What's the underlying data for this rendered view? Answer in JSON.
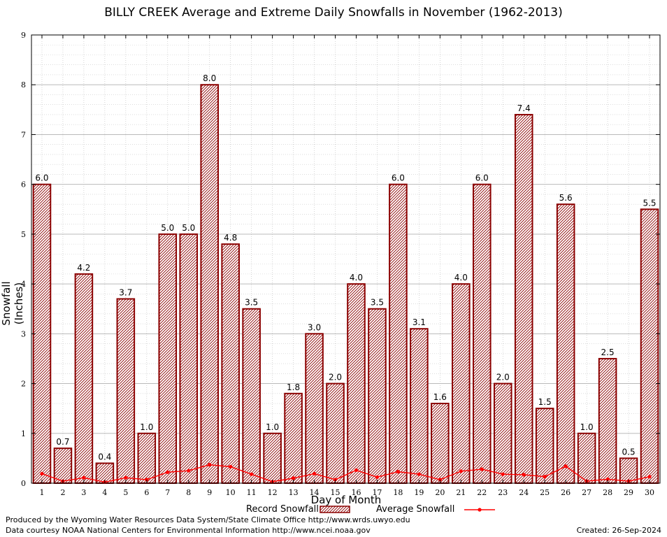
{
  "chart_data": {
    "type": "bar",
    "title": "BILLY CREEK Average and Extreme Daily Snowfalls in November (1962-2013)",
    "xlabel": "Day of Month",
    "ylabel": "Snowfall (Inches)",
    "ylim": [
      0,
      9
    ],
    "yticks": [
      0,
      1,
      2,
      3,
      4,
      5,
      6,
      7,
      8,
      9
    ],
    "categories": [
      "1",
      "2",
      "3",
      "4",
      "5",
      "6",
      "7",
      "8",
      "9",
      "10",
      "11",
      "12",
      "13",
      "14",
      "15",
      "16",
      "17",
      "18",
      "19",
      "20",
      "21",
      "22",
      "23",
      "24",
      "25",
      "26",
      "27",
      "28",
      "29",
      "30"
    ],
    "series": [
      {
        "name": "Record Snowfall",
        "type": "bar",
        "color": "#8b0000",
        "values": [
          6.0,
          0.7,
          4.2,
          0.4,
          3.7,
          1.0,
          5.0,
          5.0,
          8.0,
          4.8,
          3.5,
          1.0,
          1.8,
          3.0,
          2.0,
          4.0,
          3.5,
          6.0,
          3.1,
          1.6,
          4.0,
          6.0,
          2.0,
          7.4,
          1.5,
          5.6,
          1.0,
          2.5,
          0.5,
          5.5
        ],
        "labels": [
          "6.0",
          "0.7",
          "4.2",
          "0.4",
          "3.7",
          "1.0",
          "5.0",
          "5.0",
          "8.0",
          "4.8",
          "3.5",
          "1.0",
          "1.8",
          "3.0",
          "2.0",
          "4.0",
          "3.5",
          "6.0",
          "3.1",
          "1.6",
          "4.0",
          "6.0",
          "2.0",
          "7.4",
          "1.5",
          "5.6",
          "1.0",
          "2.5",
          "0.5",
          "5.5"
        ]
      },
      {
        "name": "Average Snowfall",
        "type": "line",
        "color": "#ff0000",
        "values": [
          0.19,
          0.04,
          0.11,
          0.02,
          0.11,
          0.07,
          0.22,
          0.25,
          0.37,
          0.33,
          0.18,
          0.03,
          0.1,
          0.19,
          0.07,
          0.26,
          0.12,
          0.23,
          0.18,
          0.07,
          0.24,
          0.28,
          0.18,
          0.17,
          0.13,
          0.34,
          0.04,
          0.08,
          0.04,
          0.13
        ]
      }
    ],
    "grid": true,
    "legend_position": "bottom-center"
  },
  "footer": {
    "produced_by": "Produced by the Wyoming Water Resources Data System/State Climate Office http://www.wrds.uwyo.edu",
    "courtesy": "Data courtesy NOAA National Centers for Environmental Information http://www.ncei.noaa.gov",
    "created": "Created: 26-Sep-2024"
  }
}
